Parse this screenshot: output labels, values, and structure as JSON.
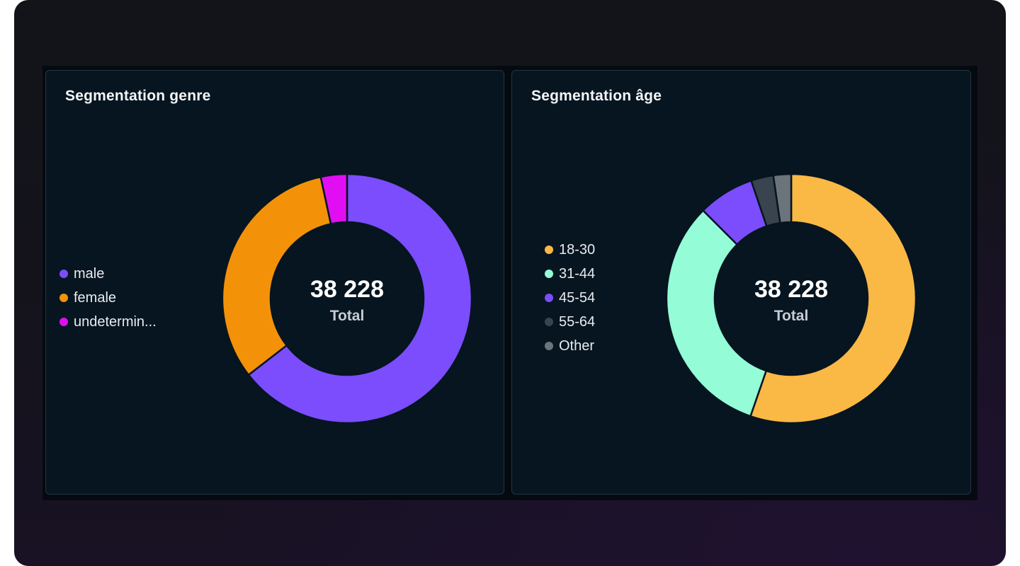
{
  "chart_data": [
    {
      "type": "pie",
      "title": "Segmentation genre",
      "center_value": "38 228",
      "center_label": "Total",
      "legend_position": "left",
      "series": [
        {
          "name": "male",
          "value": 64.5,
          "color": "#7b4dfc"
        },
        {
          "name": "female",
          "value": 32.1,
          "color": "#f39208"
        },
        {
          "name": "undetermin...",
          "value": 3.4,
          "color": "#e20ef3"
        }
      ]
    },
    {
      "type": "pie",
      "title": "Segmentation âge",
      "center_value": "38 228",
      "center_label": "Total",
      "legend_position": "left",
      "series": [
        {
          "name": "18-30",
          "value": 55.3,
          "color": "#fab845"
        },
        {
          "name": "31-44",
          "value": 32.2,
          "color": "#94fcd6"
        },
        {
          "name": "45-54",
          "value": 7.3,
          "color": "#7b4dfc"
        },
        {
          "name": "55-64",
          "value": 2.9,
          "color": "#39444f"
        },
        {
          "name": "Other",
          "value": 2.3,
          "color": "#6b747a"
        }
      ]
    }
  ]
}
